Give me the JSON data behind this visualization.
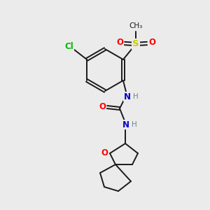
{
  "background_color": "#ebebeb",
  "atom_colors": {
    "C": "#000000",
    "N": "#0000cc",
    "O": "#ff0000",
    "S": "#cccc00",
    "Cl": "#00bb00",
    "H": "#708090"
  },
  "bond_color": "#1a1a1a",
  "figsize": [
    3.0,
    3.0
  ],
  "dpi": 100
}
